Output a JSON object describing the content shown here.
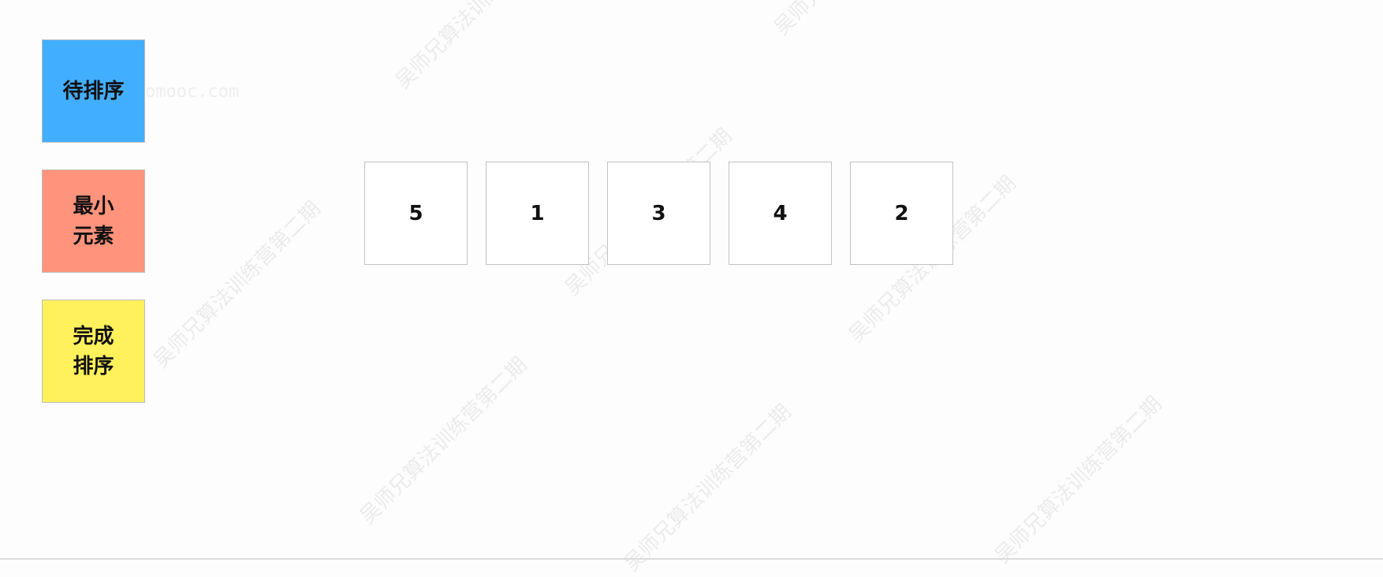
{
  "legend": [
    {
      "label": "待排序",
      "color": "#42aeff"
    },
    {
      "label": "最小\n元素",
      "color": "#ff937c"
    },
    {
      "label": "完成\n排序",
      "color": "#fff15c"
    }
  ],
  "array": [
    "5",
    "1",
    "3",
    "4",
    "2"
  ],
  "watermark": {
    "text": "吴师兄算法训练营第二期",
    "site": "omooc.com"
  }
}
